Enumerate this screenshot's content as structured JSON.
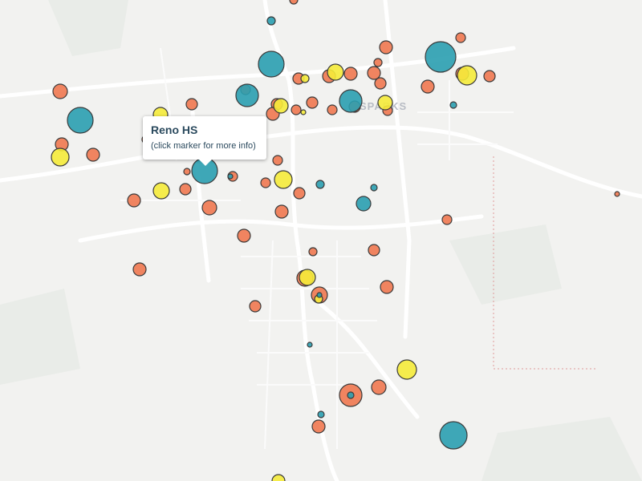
{
  "map": {
    "place_label": "SPARKS",
    "tooltip": {
      "title": "Reno HS",
      "hint": "(click marker for more info)"
    }
  }
}
